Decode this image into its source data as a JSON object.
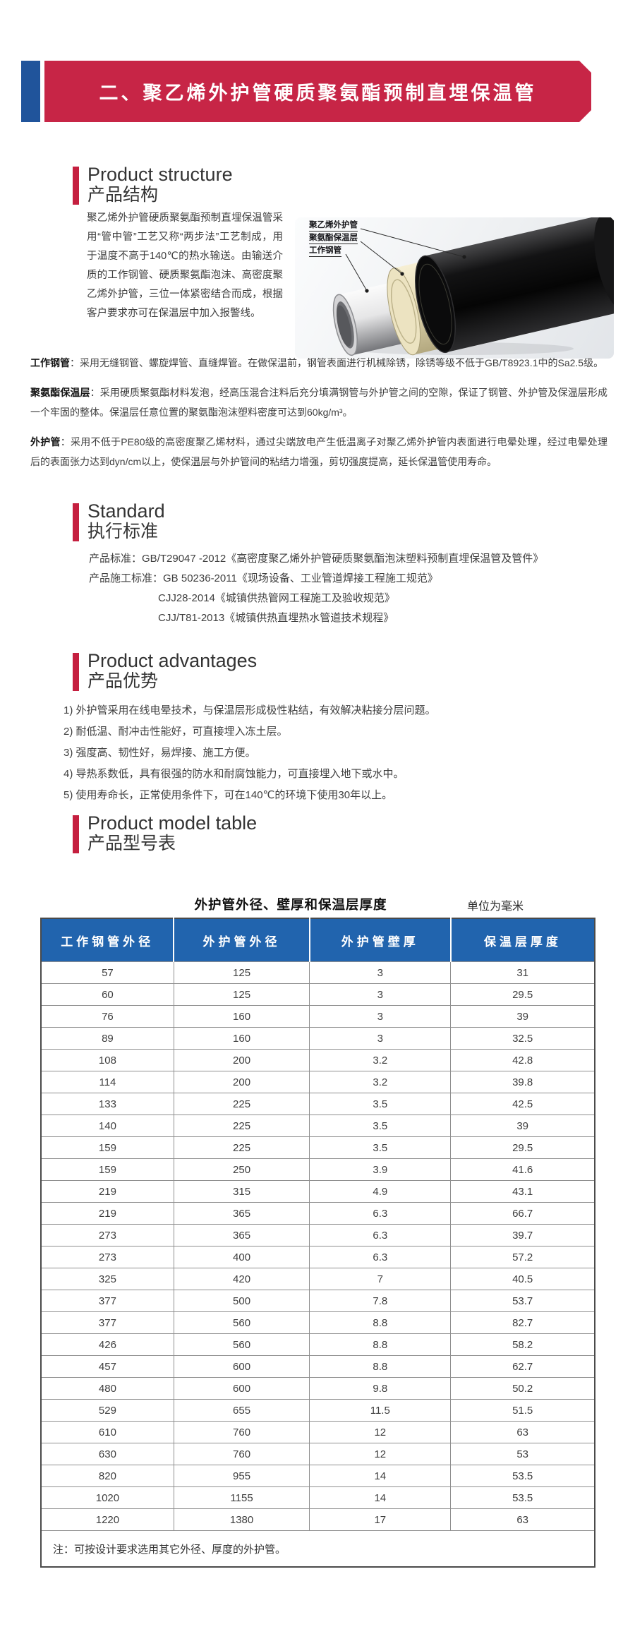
{
  "banner": {
    "title": "二、聚乙烯外护管硬质聚氨酯预制直埋保温管"
  },
  "colors": {
    "banner_red": "#C72546",
    "banner_blue": "#20549B",
    "section_bar_red": "#C51F3F",
    "table_header_blue": "#2164AE"
  },
  "sections": {
    "structure": {
      "title_en": "Product structure",
      "title_zh": "产品结构",
      "paragraph": "聚乙烯外护管硬质聚氨酯预制直埋保温管采用“管中管”工艺又称“两步法”工艺制成，用于温度不高于140℃的热水输送。由输送介质的工作钢管、硬质聚氨酯泡沫、高密度聚乙烯外护管，三位一体紧密结合而成，根据客户要求亦可在保温层中加入报警线。",
      "figure_labels": [
        "聚乙烯外护管",
        "聚氨酯保温层",
        "工作钢管"
      ],
      "details": [
        {
          "label": "工作钢管",
          "text": "：采用无缝钢管、螺旋焊管、直缝焊管。在做保温前，钢管表面进行机械除锈，除锈等级不低于GB/T8923.1中的Sa2.5级。"
        },
        {
          "label": "聚氨酯保温层",
          "text": "：采用硬质聚氨酯材料发泡，经高压混合注料后充分填满钢管与外护管之间的空隙，保证了钢管、外护管及保温层形成一个牢固的整体。保温层任意位置的聚氨酯泡沫塑料密度可达到60kg/m³。"
        },
        {
          "label": "外护管",
          "text": "：采用不低于PE80级的高密度聚乙烯材料，通过尖端放电产生低温离子对聚乙烯外护管内表面进行电晕处理，经过电晕处理后的表面张力达到dyn/cm以上，使保温层与外护管间的粘结力增强，剪切强度提高，延长保温管使用寿命。"
        }
      ]
    },
    "standard": {
      "title_en": "Standard",
      "title_zh": "执行标准",
      "items": [
        {
          "label": "产品标准：",
          "text": "GB/T29047 -2012《高密度聚乙烯外护管硬质聚氨酯泡沫塑料预制直埋保温管及管件》"
        },
        {
          "label": "产品施工标准：",
          "text": "GB 50236-2011《现场设备、工业管道焊接工程施工规范》"
        },
        {
          "label": "",
          "text": "CJJ28-2014《城镇供热管网工程施工及验收规范》"
        },
        {
          "label": "",
          "text": "CJJ/T81-2013《城镇供热直埋热水管道技术规程》"
        }
      ]
    },
    "advantages": {
      "title_en": "Product advantages",
      "title_zh": "产品优势",
      "items": [
        "1) 外护管采用在线电晕技术，与保温层形成极性粘结，有效解决粘接分层问题。",
        "2) 耐低温、耐冲击性能好，可直接埋入冻土层。",
        "3) 强度高、韧性好，易焊接、施工方便。",
        "4) 导热系数低，具有很强的防水和耐腐蚀能力，可直接埋入地下或水中。",
        "5) 使用寿命长，正常使用条件下，可在140℃的环境下使用30年以上。"
      ]
    },
    "model_table": {
      "title_en": "Product model table",
      "title_zh": "产品型号表"
    }
  },
  "table": {
    "caption": "外护管外径、壁厚和保温层厚度",
    "unit_note": "单位为毫米",
    "headers": [
      "工作钢管外径",
      "外护管外径",
      "外护管壁厚",
      "保温层厚度"
    ],
    "rows": [
      [
        57,
        125,
        3,
        31
      ],
      [
        60,
        125,
        3,
        29.5
      ],
      [
        76,
        160,
        3,
        39
      ],
      [
        89,
        160,
        3,
        32.5
      ],
      [
        108,
        200,
        3.2,
        42.8
      ],
      [
        114,
        200,
        3.2,
        39.8
      ],
      [
        133,
        225,
        3.5,
        42.5
      ],
      [
        140,
        225,
        3.5,
        39
      ],
      [
        159,
        225,
        3.5,
        29.5
      ],
      [
        159,
        250,
        3.9,
        41.6
      ],
      [
        219,
        315,
        4.9,
        43.1
      ],
      [
        219,
        365,
        6.3,
        66.7
      ],
      [
        273,
        365,
        6.3,
        39.7
      ],
      [
        273,
        400,
        6.3,
        57.2
      ],
      [
        325,
        420,
        7,
        40.5
      ],
      [
        377,
        500,
        7.8,
        53.7
      ],
      [
        377,
        560,
        8.8,
        82.7
      ],
      [
        426,
        560,
        8.8,
        58.2
      ],
      [
        457,
        600,
        8.8,
        62.7
      ],
      [
        480,
        600,
        9.8,
        50.2
      ],
      [
        529,
        655,
        11.5,
        51.5
      ],
      [
        610,
        760,
        12,
        63
      ],
      [
        630,
        760,
        12,
        53
      ],
      [
        820,
        955,
        14,
        53.5
      ],
      [
        1020,
        1155,
        14,
        53.5
      ],
      [
        1220,
        1380,
        17,
        63
      ]
    ],
    "footnote": "注：可按设计要求选用其它外径、厚度的外护管。"
  }
}
